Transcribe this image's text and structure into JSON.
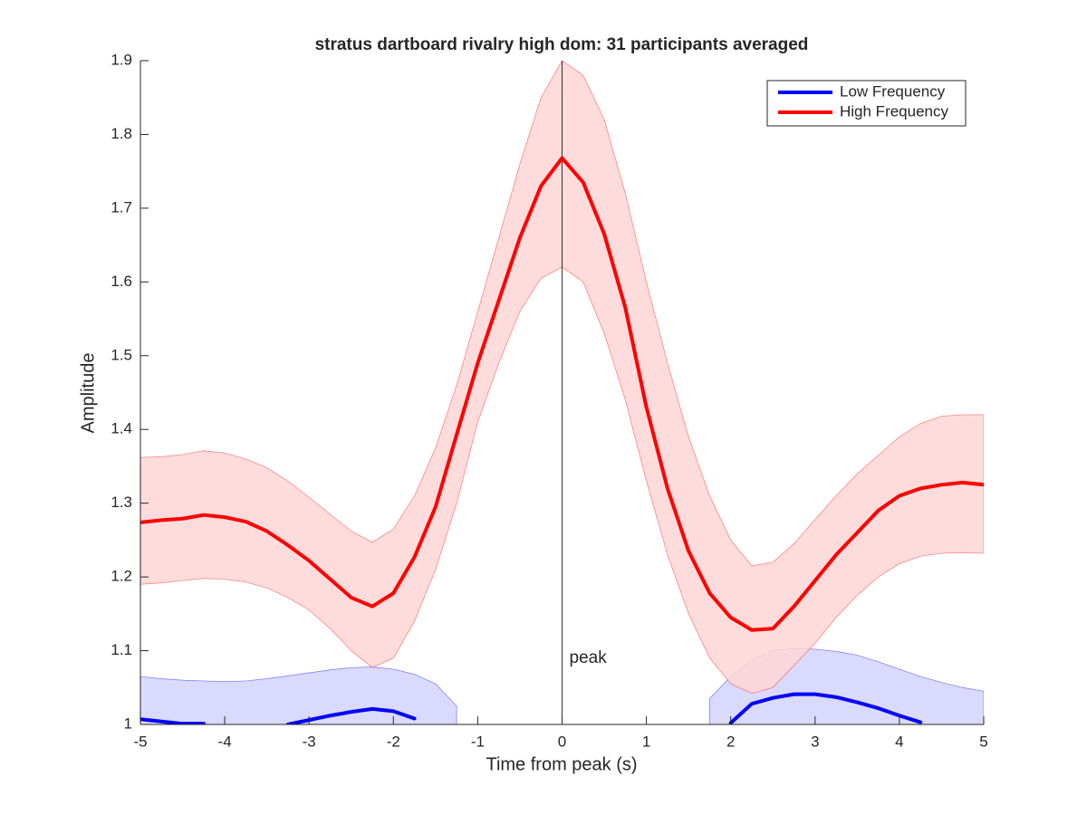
{
  "chart_data": {
    "type": "line",
    "title": "stratus dartboard rivalry high dom: 31 participants averaged",
    "x_label": "Time from peak (s)",
    "y_label": "Amplitude",
    "annotation": "peak",
    "vline": 0,
    "x": [
      -5,
      -4.75,
      -4.5,
      -4.25,
      -4,
      -3.75,
      -3.5,
      -3.25,
      -3,
      -2.75,
      -2.5,
      -2.25,
      -2,
      -1.75,
      -1.5,
      -1.25,
      -1,
      -0.75,
      -0.5,
      -0.25,
      0,
      0.25,
      0.5,
      0.75,
      1,
      1.25,
      1.5,
      1.75,
      2,
      2.25,
      2.5,
      2.75,
      3,
      3.25,
      3.5,
      3.75,
      4,
      4.25,
      4.5,
      4.75,
      5
    ],
    "series": [
      {
        "name": "Low Frequency",
        "color": "#0000ff",
        "band_color": "#d4d4ff",
        "values": [
          1.007,
          1.004,
          1.001,
          1.001,
          null,
          null,
          null,
          1.0,
          1.006,
          1.012,
          1.017,
          1.021,
          1.018,
          1.008,
          null,
          null,
          null,
          null,
          null,
          null,
          null,
          null,
          null,
          null,
          null,
          null,
          null,
          null,
          1.002,
          1.028,
          1.036,
          1.041,
          1.041,
          1.037,
          1.03,
          1.022,
          1.012,
          1.003,
          null,
          null,
          null
        ],
        "band_upper": [
          1.065,
          1.062,
          1.06,
          1.059,
          1.058,
          1.059,
          1.062,
          1.066,
          1.07,
          1.074,
          1.077,
          1.078,
          1.075,
          1.068,
          1.055,
          1.025,
          null,
          null,
          null,
          null,
          null,
          null,
          null,
          null,
          null,
          null,
          null,
          1.035,
          1.065,
          1.087,
          1.1,
          1.103,
          1.102,
          1.099,
          1.094,
          1.085,
          1.075,
          1.065,
          1.057,
          1.05,
          1.045
        ]
      },
      {
        "name": "High Frequency",
        "color": "#ff0000",
        "band_color": "#ffd6d6",
        "values": [
          1.274,
          1.277,
          1.279,
          1.284,
          1.281,
          1.275,
          1.262,
          1.243,
          1.222,
          1.197,
          1.172,
          1.16,
          1.178,
          1.227,
          1.295,
          1.393,
          1.49,
          1.575,
          1.66,
          1.73,
          1.768,
          1.735,
          1.665,
          1.565,
          1.43,
          1.32,
          1.235,
          1.178,
          1.145,
          1.128,
          1.13,
          1.16,
          1.195,
          1.23,
          1.26,
          1.29,
          1.31,
          1.32,
          1.325,
          1.328,
          1.325
        ],
        "band_upper": [
          1.362,
          1.363,
          1.366,
          1.371,
          1.368,
          1.36,
          1.348,
          1.33,
          1.308,
          1.285,
          1.262,
          1.247,
          1.265,
          1.31,
          1.375,
          1.46,
          1.56,
          1.66,
          1.76,
          1.85,
          1.9,
          1.88,
          1.82,
          1.72,
          1.6,
          1.49,
          1.39,
          1.31,
          1.25,
          1.215,
          1.22,
          1.245,
          1.278,
          1.31,
          1.34,
          1.365,
          1.39,
          1.408,
          1.418,
          1.42,
          1.42
        ],
        "band_lower": [
          1.19,
          1.192,
          1.195,
          1.198,
          1.197,
          1.193,
          1.185,
          1.172,
          1.155,
          1.13,
          1.1,
          1.077,
          1.09,
          1.14,
          1.21,
          1.3,
          1.41,
          1.49,
          1.56,
          1.605,
          1.62,
          1.6,
          1.53,
          1.44,
          1.33,
          1.23,
          1.15,
          1.09,
          1.055,
          1.042,
          1.05,
          1.08,
          1.11,
          1.145,
          1.175,
          1.2,
          1.218,
          1.228,
          1.232,
          1.233,
          1.232
        ]
      }
    ],
    "xlim": [
      -5,
      5
    ],
    "xticks": [
      -5,
      -4,
      -3,
      -2,
      -1,
      0,
      1,
      2,
      3,
      4,
      5
    ],
    "ylim": [
      1,
      1.9
    ],
    "yticks": [
      1,
      1.1,
      1.2,
      1.3,
      1.4,
      1.5,
      1.6,
      1.7,
      1.8,
      1.9
    ],
    "legend": "northeast"
  }
}
